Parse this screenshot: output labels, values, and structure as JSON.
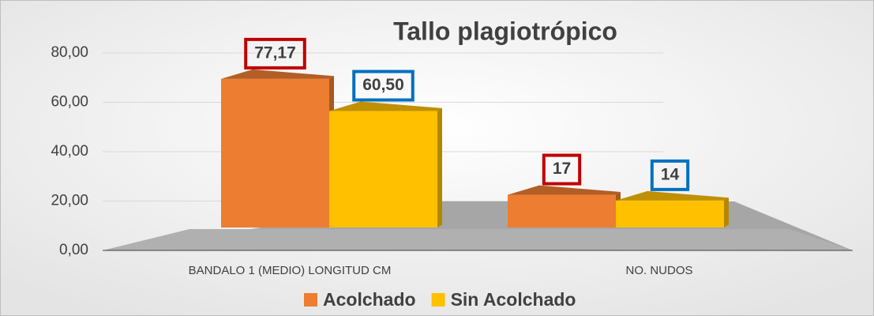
{
  "chart_data": {
    "type": "bar3d",
    "title": "Tallo plagiotrópico",
    "categories": [
      "BANDALO 1 (MEDIO) LONGITUD CM",
      "NO. NUDOS"
    ],
    "series": [
      {
        "name": "Acolchado",
        "color": "#ed7d31",
        "label_border": "#c00000",
        "values": [
          77.17,
          17
        ],
        "value_labels": [
          "77,17",
          "17"
        ]
      },
      {
        "name": "Sin Acolchado",
        "color": "#ffc000",
        "label_border": "#0070c0",
        "values": [
          60.5,
          14
        ],
        "value_labels": [
          "60,50",
          "14"
        ]
      }
    ],
    "ylim": [
      0,
      80
    ],
    "yticks": [
      {
        "value": 0,
        "label": "0,00"
      },
      {
        "value": 20,
        "label": "20,00"
      },
      {
        "value": 40,
        "label": "40,00"
      },
      {
        "value": 60,
        "label": "60,00"
      },
      {
        "value": 80,
        "label": "80,00"
      }
    ],
    "grid": true,
    "legend": "bottom"
  }
}
